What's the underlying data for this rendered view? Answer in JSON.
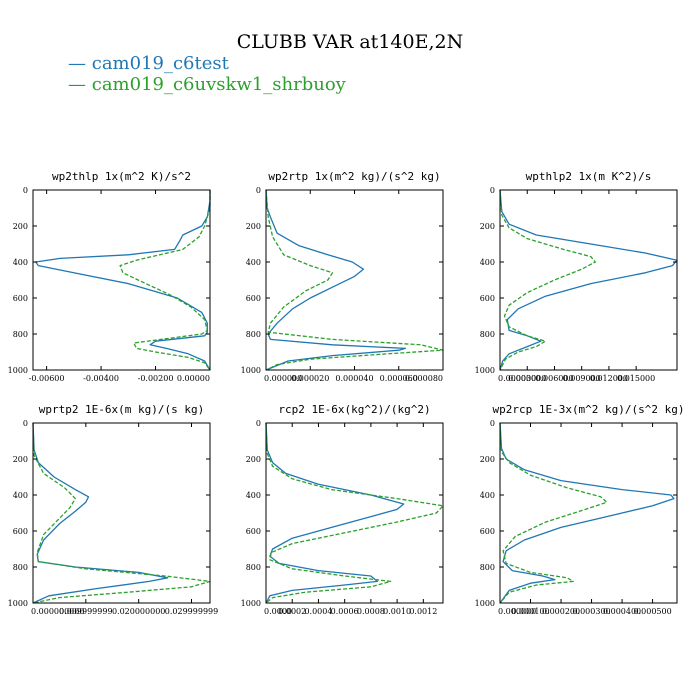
{
  "title": "CLUBB VAR at140E,2N",
  "legend": [
    {
      "label": "cam019_c6test",
      "color": "#1f77b4",
      "dash": false
    },
    {
      "label": "cam019_c6uvskw1_shrbuoy",
      "color": "#2ca02c",
      "dash": true
    }
  ],
  "chart_data": [
    {
      "type": "line",
      "title": "wp2thlp  1x(m^2 K)/s^2",
      "xlim": [
        -0.0065,
        0.0
      ],
      "ylim": [
        1000,
        0
      ],
      "yticks": [
        "0",
        "200",
        "400",
        "600",
        "800",
        "1000"
      ],
      "ytick_values": [
        0,
        200,
        400,
        600,
        800,
        1000
      ],
      "xtick_values": [
        -0.006,
        -0.004,
        -0.002,
        0.0
      ],
      "xtick_labels": [
        "-0.00600",
        "-0.00400",
        "-0.00200",
        "0.00000"
      ],
      "series": [
        {
          "name": "cam019_c6test",
          "x": [
            0,
            0,
            -0.0001,
            -0.0003,
            -0.001,
            -0.0011,
            -0.0013,
            -0.003,
            -0.0055,
            -0.0064,
            -0.0063,
            -0.005,
            -0.003,
            -0.0012,
            -0.0003,
            -0.0001,
            -0.0001,
            -0.0002,
            -0.002,
            -0.0022,
            -0.0016,
            -0.0008,
            -0.0002,
            0
          ],
          "y": [
            0,
            60,
            150,
            200,
            250,
            280,
            330,
            360,
            380,
            400,
            420,
            460,
            520,
            600,
            680,
            740,
            790,
            810,
            840,
            860,
            880,
            910,
            950,
            1000
          ]
        },
        {
          "name": "cam019_c6uvskw1_shrbuoy",
          "x": [
            0,
            0,
            -0.0002,
            -0.0004,
            -0.001,
            -0.0027,
            -0.0033,
            -0.0032,
            -0.0025,
            -0.0015,
            -0.0007,
            -0.0002,
            -0.0001,
            -0.0003,
            -0.0013,
            -0.0028,
            -0.0027,
            -0.002,
            -0.0008,
            -0.0002,
            0
          ],
          "y": [
            0,
            100,
            200,
            260,
            330,
            390,
            420,
            460,
            510,
            580,
            650,
            720,
            780,
            800,
            820,
            850,
            880,
            900,
            930,
            960,
            1000
          ]
        }
      ]
    },
    {
      "type": "line",
      "title": "wp2rtp  1x(m^2 kg)/(s^2 kg)",
      "xlim": [
        0,
        8e-05
      ],
      "ylim": [
        1000,
        0
      ],
      "yticks": [
        "0",
        "200",
        "400",
        "600",
        "800",
        "1000"
      ],
      "ytick_values": [
        0,
        200,
        400,
        600,
        800,
        1000
      ],
      "xtick_values": [
        0,
        2e-05,
        4e-05,
        6e-05,
        8e-05
      ],
      "xtick_labels": [
        "0.000000",
        "0.000020",
        "0.000040",
        "0.000060",
        "0.000080"
      ],
      "series": [
        {
          "name": "cam019_c6test",
          "x": [
            0,
            5e-07,
            2e-06,
            5e-06,
            1.5e-05,
            2.8e-05,
            3.9e-05,
            4.4e-05,
            4e-05,
            3e-05,
            2e-05,
            1.2e-05,
            5e-06,
            1e-06,
            2e-06,
            3e-05,
            6.3e-05,
            6e-05,
            3e-05,
            1e-05,
            0
          ],
          "y": [
            0,
            100,
            150,
            240,
            310,
            360,
            400,
            440,
            480,
            540,
            600,
            660,
            740,
            800,
            830,
            860,
            880,
            890,
            920,
            950,
            1000
          ]
        },
        {
          "name": "cam019_c6uvskw1_shrbuoy",
          "x": [
            0,
            1e-06,
            3e-06,
            8e-06,
            2e-05,
            3e-05,
            2.8e-05,
            1.8e-05,
            8e-06,
            2e-06,
            1e-06,
            3e-05,
            7e-05,
            8e-05,
            5.5e-05,
            2e-05,
            5e-06,
            0
          ],
          "y": [
            0,
            150,
            260,
            360,
            420,
            460,
            500,
            560,
            650,
            740,
            790,
            830,
            860,
            890,
            910,
            940,
            970,
            1000
          ]
        }
      ]
    },
    {
      "type": "line",
      "title": "wpthlp2  1x(m K^2)/s",
      "xlim": [
        0,
        0.0195
      ],
      "ylim": [
        1000,
        0
      ],
      "yticks": [
        "0",
        "200",
        "400",
        "600",
        "800",
        "1000"
      ],
      "ytick_values": [
        0,
        200,
        400,
        600,
        800,
        1000
      ],
      "xtick_values": [
        0,
        0.003,
        0.006,
        0.009,
        0.012,
        0.015
      ],
      "xtick_labels": [
        "0.000000",
        "0.003000",
        "0.006000",
        "0.009000",
        "0.012000",
        "0.015000"
      ],
      "series": [
        {
          "name": "cam019_c6test",
          "x": [
            0,
            0.0002,
            0.001,
            0.004,
            0.01,
            0.016,
            0.0195,
            0.019,
            0.016,
            0.01,
            0.005,
            0.002,
            0.0008,
            0.001,
            0.003,
            0.0045,
            0.003,
            0.001,
            0.0003,
            0
          ],
          "y": [
            0,
            120,
            190,
            250,
            300,
            350,
            390,
            420,
            460,
            520,
            590,
            660,
            720,
            780,
            810,
            840,
            870,
            910,
            950,
            1000
          ]
        },
        {
          "name": "cam019_c6uvskw1_shrbuoy",
          "x": [
            0,
            0.0002,
            0.001,
            0.003,
            0.007,
            0.01,
            0.0105,
            0.009,
            0.006,
            0.003,
            0.001,
            0.0005,
            0.001,
            0.003,
            0.005,
            0.004,
            0.002,
            0.0006,
            0
          ],
          "y": [
            0,
            140,
            210,
            270,
            330,
            370,
            400,
            440,
            500,
            570,
            640,
            700,
            760,
            810,
            840,
            870,
            900,
            940,
            1000
          ]
        }
      ]
    },
    {
      "type": "line",
      "title": "wprtp2  1E-6x(m kg)/(s kg)",
      "xlim": [
        0,
        0.0335
      ],
      "ylim": [
        1000,
        0
      ],
      "yticks": [
        "0",
        "200",
        "400",
        "600",
        "800",
        "1000"
      ],
      "ytick_values": [
        0,
        200,
        400,
        600,
        800,
        1000
      ],
      "xtick_values": [
        0,
        0.01,
        0.02,
        0.03
      ],
      "xtick_labels": [
        "0.000000000",
        "0.009999999",
        "0.020000000",
        "0.029999999"
      ],
      "series": [
        {
          "name": "cam019_c6test",
          "x": [
            0,
            0.0002,
            0.001,
            0.004,
            0.008,
            0.0105,
            0.01,
            0.008,
            0.005,
            0.002,
            0.0008,
            0.001,
            0.008,
            0.02,
            0.0255,
            0.022,
            0.012,
            0.003,
            0
          ],
          "y": [
            0,
            150,
            220,
            300,
            370,
            410,
            440,
            490,
            560,
            650,
            730,
            770,
            800,
            830,
            860,
            880,
            920,
            960,
            1000
          ]
        },
        {
          "name": "cam019_c6uvskw1_shrbuoy",
          "x": [
            0,
            0.0002,
            0.002,
            0.006,
            0.008,
            0.007,
            0.005,
            0.002,
            0.0008,
            0.001,
            0.01,
            0.025,
            0.0335,
            0.03,
            0.018,
            0.005,
            0
          ],
          "y": [
            0,
            180,
            280,
            360,
            420,
            470,
            530,
            620,
            720,
            770,
            810,
            850,
            880,
            910,
            940,
            970,
            1000
          ]
        }
      ]
    },
    {
      "type": "line",
      "title": "rcp2  1E-6x(kg^2)/(kg^2)",
      "xlim": [
        0,
        0.00135
      ],
      "ylim": [
        1000,
        0
      ],
      "yticks": [
        "0",
        "200",
        "400",
        "600",
        "800",
        "1000"
      ],
      "ytick_values": [
        0,
        200,
        400,
        600,
        800,
        1000
      ],
      "xtick_values": [
        0,
        0.0002,
        0.0004,
        0.0006,
        0.0008,
        0.001,
        0.0012
      ],
      "xtick_labels": [
        "0.0000",
        "0.0002",
        "0.0004",
        "0.0006",
        "0.0008",
        "0.0010",
        "0.0012"
      ],
      "series": [
        {
          "name": "cam019_c6test",
          "x": [
            0,
            1e-05,
            5e-05,
            0.00015,
            0.0004,
            0.0008,
            0.00105,
            0.001,
            0.0008,
            0.0005,
            0.0002,
            5e-05,
            3e-05,
            0.0001,
            0.0004,
            0.0008,
            0.00085,
            0.0006,
            0.0002,
            3e-05,
            0
          ],
          "y": [
            0,
            150,
            220,
            280,
            340,
            400,
            450,
            480,
            520,
            580,
            640,
            700,
            740,
            780,
            820,
            850,
            880,
            900,
            930,
            960,
            1000
          ]
        },
        {
          "name": "cam019_c6uvskw1_shrbuoy",
          "x": [
            0,
            1e-05,
            5e-05,
            0.0002,
            0.0005,
            0.001,
            0.00135,
            0.0013,
            0.001,
            0.0006,
            0.0002,
            4e-05,
            3e-05,
            0.0002,
            0.0006,
            0.00095,
            0.0008,
            0.0003,
            5e-05,
            0
          ],
          "y": [
            0,
            170,
            240,
            310,
            370,
            420,
            460,
            500,
            550,
            610,
            670,
            720,
            760,
            810,
            850,
            880,
            910,
            940,
            970,
            1000
          ]
        }
      ]
    },
    {
      "type": "line",
      "title": "wp2rcp  1E-3x(m^2 kg)/(s^2 kg)",
      "xlim": [
        0,
        0.00058
      ],
      "ylim": [
        1000,
        0
      ],
      "yticks": [
        "0",
        "200",
        "400",
        "600",
        "800",
        "1000"
      ],
      "ytick_values": [
        0,
        200,
        400,
        600,
        800,
        1000
      ],
      "xtick_values": [
        0,
        0.0001,
        0.0002,
        0.0003,
        0.0004,
        0.0005
      ],
      "xtick_labels": [
        "0.000000",
        "0.000100",
        "0.000200",
        "0.000300",
        "0.000400",
        "0.000500"
      ],
      "series": [
        {
          "name": "cam019_c6test",
          "x": [
            0,
            5e-06,
            2e-05,
            8e-05,
            0.0002,
            0.0004,
            0.00056,
            0.00057,
            0.0005,
            0.00035,
            0.0002,
            8e-05,
            2e-05,
            1e-05,
            4e-05,
            0.00014,
            0.00018,
            0.0001,
            3e-05,
            0
          ],
          "y": [
            0,
            140,
            200,
            260,
            320,
            370,
            400,
            420,
            460,
            520,
            580,
            650,
            710,
            770,
            820,
            850,
            870,
            890,
            930,
            1000
          ]
        },
        {
          "name": "cam019_c6uvskw1_shrbuoy",
          "x": [
            0,
            5e-06,
            3e-05,
            0.0001,
            0.00022,
            0.00033,
            0.00035,
            0.00028,
            0.00015,
            5e-05,
            1e-05,
            2e-05,
            0.0001,
            0.00022,
            0.00024,
            0.00012,
            3e-05,
            0
          ],
          "y": [
            0,
            160,
            220,
            290,
            360,
            410,
            440,
            480,
            550,
            630,
            710,
            780,
            830,
            860,
            880,
            900,
            940,
            1000
          ]
        }
      ]
    }
  ]
}
